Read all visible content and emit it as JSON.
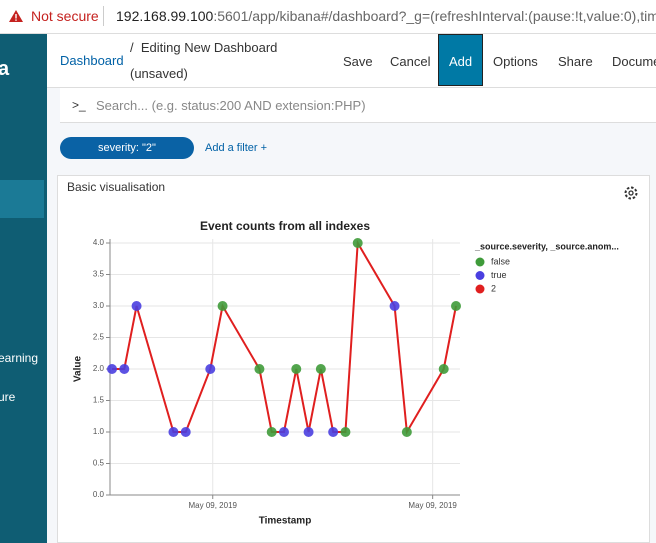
{
  "browser": {
    "security": "Not secure",
    "url_host": "192.168.99.100",
    "url_rest": ":5601/app/kibana#/dashboard?_g=(refreshInterval:(pause:!t,value:0),time"
  },
  "sidebar": {
    "items": [
      "a",
      "earning",
      "ure"
    ]
  },
  "header": {
    "breadcrumb_link": "Dashboard",
    "breadcrumb": "/  Editing New Dashboard",
    "status": "(unsaved)",
    "buttons": [
      "Save",
      "Cancel",
      "Add",
      "Options",
      "Share",
      "Docume"
    ]
  },
  "search": {
    "prompt": ">_",
    "placeholder": "Search... (e.g. status:200 AND extension:PHP)"
  },
  "filters": {
    "pill": "severity: \"2\"",
    "add": "Add a filter +"
  },
  "panel": {
    "title": "Basic visualisation"
  },
  "chart_data": {
    "type": "line",
    "title": "Event counts from all indexes",
    "x_label": "Timestamp",
    "y_label": "Value",
    "legend_title": "_source.severity, _source.anom...",
    "x": [
      0,
      1,
      2,
      5,
      6,
      8,
      9,
      12,
      13,
      14,
      15,
      16,
      17,
      18,
      19,
      20,
      23,
      24,
      27,
      28
    ],
    "xlim": [
      0,
      28
    ],
    "xticks": [
      {
        "value": 8.2,
        "label": "May 09, 2019"
      },
      {
        "value": 26.1,
        "label": "May 09, 2019"
      }
    ],
    "ylim": [
      0,
      4
    ],
    "yticks": [
      {
        "value": 0,
        "label": "0.0"
      },
      {
        "value": 0.5,
        "label": "0.5"
      },
      {
        "value": 1,
        "label": "1.0"
      },
      {
        "value": 1.5,
        "label": "1.5"
      },
      {
        "value": 2,
        "label": "2.0"
      },
      {
        "value": 2.5,
        "label": "2.5"
      },
      {
        "value": 3,
        "label": "3.0"
      },
      {
        "value": 3.5,
        "label": "3.5"
      },
      {
        "value": 4,
        "label": "4.0"
      }
    ],
    "grid": true,
    "series": [
      {
        "name": "false",
        "color": "#3f9b3a",
        "kind": "points",
        "values": [
          null,
          null,
          null,
          null,
          null,
          null,
          3,
          2,
          1,
          null,
          2,
          null,
          2,
          null,
          1,
          4,
          null,
          1,
          2,
          3
        ]
      },
      {
        "name": "true",
        "color": "#4a3fe0",
        "kind": "points",
        "values": [
          2,
          2,
          3,
          1,
          1,
          2,
          null,
          null,
          null,
          1,
          null,
          1,
          null,
          1,
          null,
          null,
          3,
          null,
          null,
          null
        ]
      },
      {
        "name": "2",
        "color": "#e01f1f",
        "kind": "line",
        "values": [
          2,
          2,
          3,
          1,
          1,
          2,
          3,
          2,
          1,
          1,
          2,
          1,
          2,
          1,
          1,
          4,
          3,
          1,
          2,
          3
        ]
      }
    ]
  }
}
